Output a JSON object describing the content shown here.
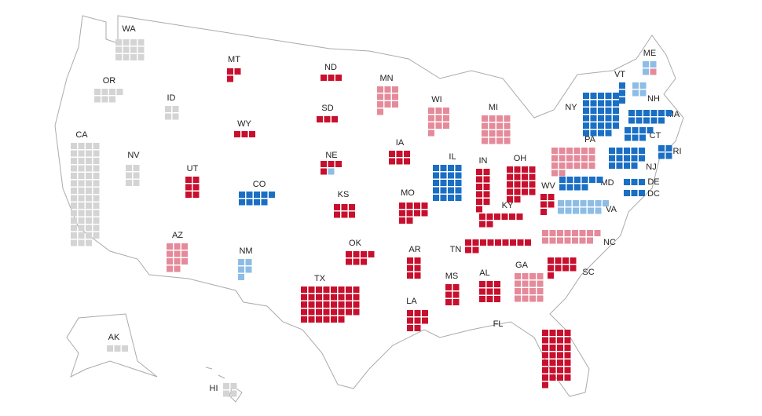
{
  "states": [
    {
      "label": "WA",
      "segments": [
        {
          "color": "#d4d4d4",
          "votes": 12
        }
      ]
    },
    {
      "label": "OR",
      "segments": [
        {
          "color": "#d4d4d4",
          "votes": 7
        }
      ]
    },
    {
      "label": "ID",
      "segments": [
        {
          "color": "#d4d4d4",
          "votes": 4
        }
      ]
    },
    {
      "label": "CA",
      "segments": [
        {
          "color": "#d4d4d4",
          "votes": 55
        }
      ]
    },
    {
      "label": "NV",
      "segments": [
        {
          "color": "#d4d4d4",
          "votes": 6
        }
      ]
    },
    {
      "label": "MT",
      "segments": [
        {
          "color": "#c8102e",
          "votes": 3
        }
      ]
    },
    {
      "label": "WY",
      "segments": [
        {
          "color": "#c8102e",
          "votes": 3
        }
      ]
    },
    {
      "label": "ND",
      "segments": [
        {
          "color": "#c8102e",
          "votes": 3
        }
      ]
    },
    {
      "label": "SD",
      "segments": [
        {
          "color": "#c8102e",
          "votes": 3
        }
      ]
    },
    {
      "label": "NE",
      "segments": [
        {
          "color": "#c8102e",
          "votes": 4
        },
        {
          "color": "#8dbde6",
          "votes": 1
        }
      ]
    },
    {
      "label": "UT",
      "segments": [
        {
          "color": "#c8102e",
          "votes": 6
        }
      ]
    },
    {
      "label": "CO",
      "segments": [
        {
          "color": "#1a6fc4",
          "votes": 9
        }
      ]
    },
    {
      "label": "AZ",
      "segments": [
        {
          "color": "#e58a9a",
          "votes": 11
        }
      ]
    },
    {
      "label": "NM",
      "segments": [
        {
          "color": "#8dbde6",
          "votes": 5
        }
      ]
    },
    {
      "label": "KS",
      "segments": [
        {
          "color": "#c8102e",
          "votes": 6
        }
      ]
    },
    {
      "label": "OK",
      "segments": [
        {
          "color": "#c8102e",
          "votes": 7
        }
      ]
    },
    {
      "label": "TX",
      "segments": [
        {
          "color": "#c8102e",
          "votes": 38
        }
      ]
    },
    {
      "label": "MN",
      "segments": [
        {
          "color": "#e58a9a",
          "votes": 10
        }
      ]
    },
    {
      "label": "IA",
      "segments": [
        {
          "color": "#c8102e",
          "votes": 6
        }
      ]
    },
    {
      "label": "MO",
      "segments": [
        {
          "color": "#c8102e",
          "votes": 10
        }
      ]
    },
    {
      "label": "AR",
      "segments": [
        {
          "color": "#c8102e",
          "votes": 6
        }
      ]
    },
    {
      "label": "LA",
      "segments": [
        {
          "color": "#c8102e",
          "votes": 8
        }
      ]
    },
    {
      "label": "WI",
      "segments": [
        {
          "color": "#e58a9a",
          "votes": 10
        }
      ]
    },
    {
      "label": "IL",
      "segments": [
        {
          "color": "#1a6fc4",
          "votes": 20
        }
      ]
    },
    {
      "label": "MI",
      "segments": [
        {
          "color": "#e58a9a",
          "votes": 16
        }
      ]
    },
    {
      "label": "IN",
      "segments": [
        {
          "color": "#c8102e",
          "votes": 11
        }
      ]
    },
    {
      "label": "OH",
      "segments": [
        {
          "color": "#c8102e",
          "votes": 18
        }
      ]
    },
    {
      "label": "KY",
      "segments": [
        {
          "color": "#c8102e",
          "votes": 8
        }
      ]
    },
    {
      "label": "TN",
      "segments": [
        {
          "color": "#c8102e",
          "votes": 11
        }
      ]
    },
    {
      "label": "MS",
      "segments": [
        {
          "color": "#c8102e",
          "votes": 6
        }
      ]
    },
    {
      "label": "AL",
      "segments": [
        {
          "color": "#c8102e",
          "votes": 9
        }
      ]
    },
    {
      "label": "GA",
      "segments": [
        {
          "color": "#e58a9a",
          "votes": 16
        }
      ]
    },
    {
      "label": "FL",
      "segments": [
        {
          "color": "#c8102e",
          "votes": 29
        }
      ]
    },
    {
      "label": "SC",
      "segments": [
        {
          "color": "#c8102e",
          "votes": 9
        }
      ]
    },
    {
      "label": "NC",
      "segments": [
        {
          "color": "#e58a9a",
          "votes": 15
        }
      ]
    },
    {
      "label": "VA",
      "segments": [
        {
          "color": "#8dbde6",
          "votes": 13
        }
      ]
    },
    {
      "label": "WV",
      "segments": [
        {
          "color": "#c8102e",
          "votes": 5
        }
      ]
    },
    {
      "label": "PA",
      "segments": [
        {
          "color": "#e58a9a",
          "votes": 20
        }
      ]
    },
    {
      "label": "NY",
      "segments": [
        {
          "color": "#1a6fc4",
          "votes": 29
        }
      ]
    },
    {
      "label": "VT",
      "segments": [
        {
          "color": "#1a6fc4",
          "votes": 3
        }
      ]
    },
    {
      "label": "NH",
      "segments": [
        {
          "color": "#8dbde6",
          "votes": 4
        }
      ]
    },
    {
      "label": "ME",
      "segments": [
        {
          "color": "#8dbde6",
          "votes": 3
        },
        {
          "color": "#e58a9a",
          "votes": 1
        }
      ]
    },
    {
      "label": "MA",
      "segments": [
        {
          "color": "#1a6fc4",
          "votes": 11
        }
      ]
    },
    {
      "label": "CT",
      "segments": [
        {
          "color": "#1a6fc4",
          "votes": 7
        }
      ]
    },
    {
      "label": "RI",
      "segments": [
        {
          "color": "#1a6fc4",
          "votes": 4
        }
      ]
    },
    {
      "label": "NJ",
      "segments": [
        {
          "color": "#1a6fc4",
          "votes": 14
        }
      ]
    },
    {
      "label": "DE",
      "segments": [
        {
          "color": "#1a6fc4",
          "votes": 3
        }
      ]
    },
    {
      "label": "MD",
      "segments": [
        {
          "color": "#1a6fc4",
          "votes": 10
        }
      ]
    },
    {
      "label": "DC",
      "segments": [
        {
          "color": "#1a6fc4",
          "votes": 3
        }
      ]
    },
    {
      "label": "AK",
      "segments": [
        {
          "color": "#d4d4d4",
          "votes": 3
        }
      ]
    },
    {
      "label": "HI",
      "segments": [
        {
          "color": "#d4d4d4",
          "votes": 4
        }
      ]
    }
  ]
}
